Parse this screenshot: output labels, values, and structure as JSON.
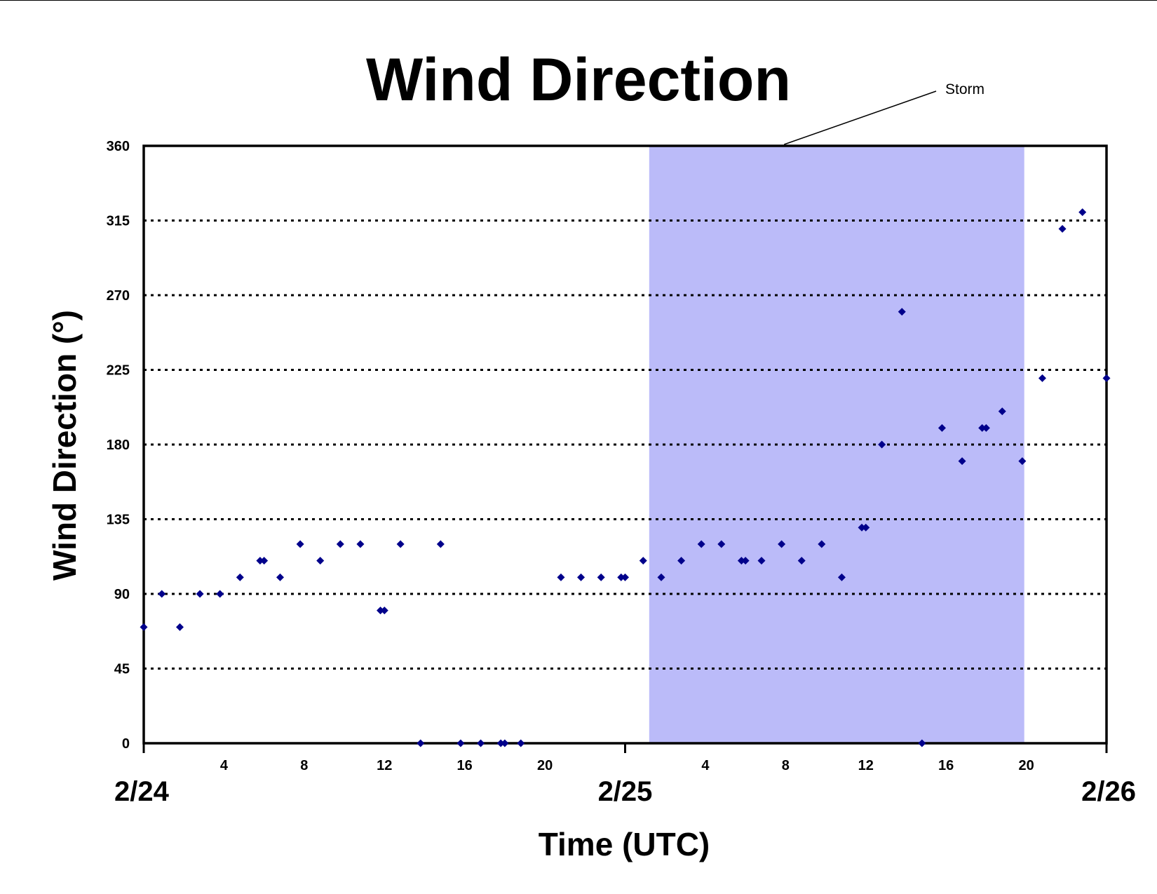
{
  "chart_data": {
    "type": "scatter",
    "title": "Wind Direction",
    "xlabel": "Time (UTC)",
    "ylabel": "Wind Direction (°)",
    "ylim": [
      0,
      360
    ],
    "yticks": [
      "0",
      "45",
      "90",
      "135",
      "180",
      "225",
      "270",
      "315",
      "360"
    ],
    "xlim": [
      0,
      48
    ],
    "xticks": [
      "4",
      "8",
      "12",
      "16",
      "20",
      "4",
      "8",
      "12",
      "16",
      "20"
    ],
    "day_labels": [
      "2/24",
      "2/25",
      "2/26"
    ],
    "grid": "horizontal dotted",
    "marker_color": "#00008b",
    "shade_color": "#bbbbf9",
    "annotation": {
      "text": "Storm",
      "x_start_hour": 25.2,
      "x_end_hour": 43.9
    },
    "series": [
      {
        "x": [
          0,
          0.9,
          1.8,
          2.8,
          3.8,
          4.8,
          5.8,
          6,
          6.8,
          7.8,
          8.8,
          9.8,
          10.8,
          11.8,
          12,
          12.8,
          13.8,
          14.8,
          15.8,
          16.8,
          17.8,
          18,
          18.8,
          20.8,
          21.8,
          22.8,
          23.8,
          24,
          24.9,
          25.8,
          26.8,
          27.8,
          28.8,
          29.8,
          30,
          30.8,
          31.8,
          32.8,
          33.8,
          34.8,
          35.8,
          36,
          36.8,
          37.8,
          38.8,
          39.8,
          40.8,
          41.8,
          42,
          42.8,
          43.8,
          44.8,
          45.8,
          46.8,
          48
        ],
        "y": [
          70,
          90,
          70,
          90,
          90,
          100,
          110,
          110,
          100,
          120,
          110,
          120,
          120,
          80,
          80,
          120,
          0,
          120,
          0,
          0,
          0,
          0,
          0,
          100,
          100,
          100,
          100,
          100,
          110,
          100,
          110,
          120,
          120,
          110,
          110,
          110,
          120,
          110,
          120,
          100,
          130,
          130,
          180,
          260,
          0,
          190,
          170,
          190,
          190,
          200,
          170,
          220,
          310,
          320,
          220
        ]
      }
    ]
  }
}
